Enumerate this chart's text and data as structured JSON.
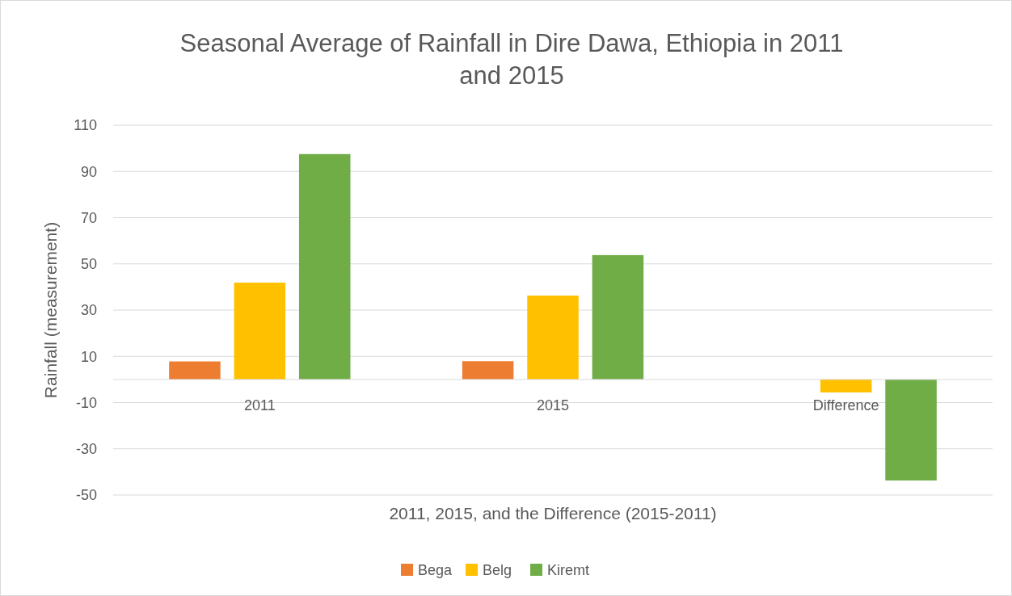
{
  "chart_data": {
    "type": "bar",
    "title": "Seasonal Average of Rainfall in Dire Dawa, Ethiopia in 2011 and 2015",
    "xlabel": "2011, 2015, and the Difference (2015-2011)",
    "ylabel": "Rainfall (measurement)",
    "categories": [
      "2011",
      "2015",
      "Difference"
    ],
    "series": [
      {
        "name": "Bega",
        "color": "#ed7d31",
        "values": [
          7.8,
          7.9,
          null
        ]
      },
      {
        "name": "Belg",
        "color": "#ffc000",
        "values": [
          41.9,
          36.3,
          -5.6
        ]
      },
      {
        "name": "Kiremt",
        "color": "#70ad47",
        "values": [
          97.5,
          53.8,
          -43.7
        ]
      }
    ],
    "ylim": [
      -50,
      110
    ],
    "yticks": [
      -50,
      -30,
      -10,
      10,
      30,
      50,
      70,
      90,
      110
    ],
    "grid": "y",
    "legend": "bottom"
  }
}
